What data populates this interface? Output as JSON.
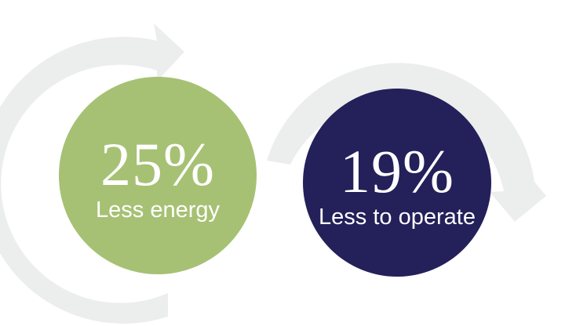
{
  "colors": {
    "arrow": "#eceeed",
    "energy_circle": "#a6c173",
    "operate_circle": "#23205a",
    "text": "#ffffff",
    "background": "#ffffff"
  },
  "stats": [
    {
      "value": "25%",
      "label": "Less energy"
    },
    {
      "value": "19%",
      "label": "Less to operate"
    }
  ],
  "icons": [
    "cycle-arrow-left-icon",
    "cycle-arrow-right-icon"
  ]
}
